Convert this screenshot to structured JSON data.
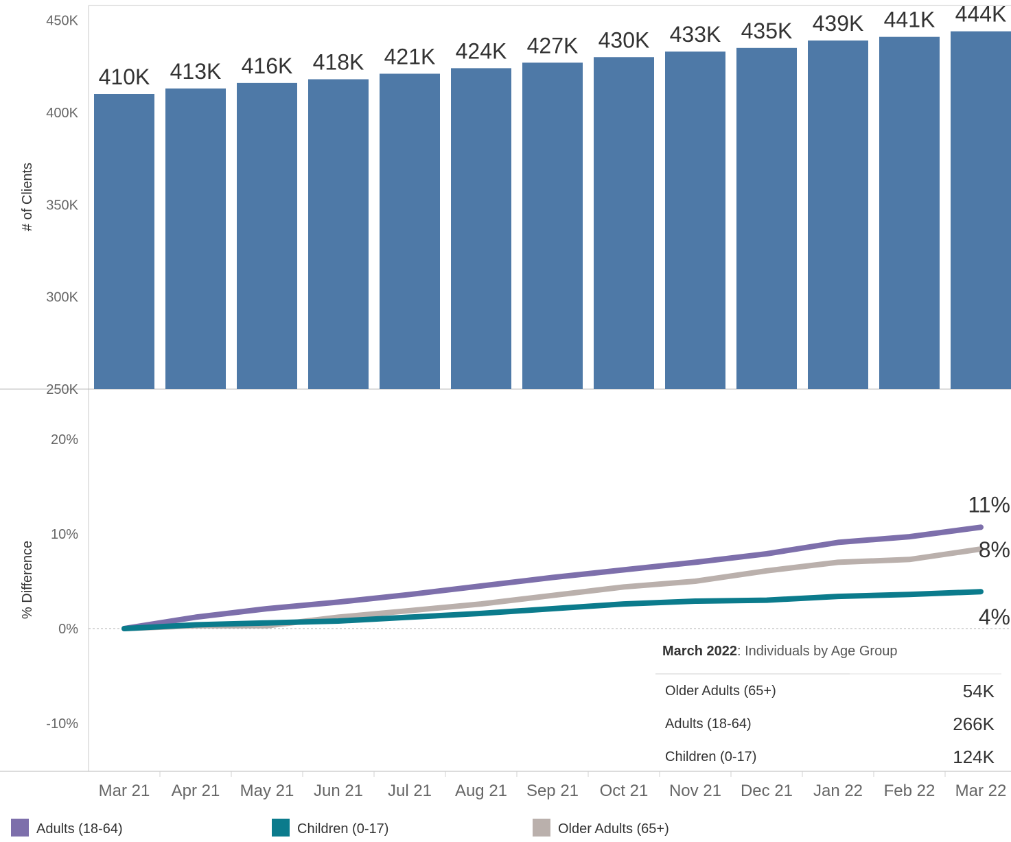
{
  "chart_data": [
    {
      "type": "bar",
      "ylabel": "# of Clients",
      "ylim": [
        250000,
        458000
      ],
      "yticks": [
        250000,
        300000,
        350000,
        400000,
        450000
      ],
      "ytick_labels": [
        "250K",
        "300K",
        "350K",
        "400K",
        "450K"
      ],
      "categories": [
        "Mar 21",
        "Apr 21",
        "May 21",
        "Jun 21",
        "Jul 21",
        "Aug 21",
        "Sep 21",
        "Oct 21",
        "Nov 21",
        "Dec 21",
        "Jan 22",
        "Feb 22",
        "Mar 22"
      ],
      "values": [
        410000,
        413000,
        416000,
        418000,
        421000,
        424000,
        427000,
        430000,
        433000,
        435000,
        439000,
        441000,
        444000
      ],
      "data_labels": [
        "410K",
        "413K",
        "416K",
        "418K",
        "421K",
        "424K",
        "427K",
        "430K",
        "433K",
        "435K",
        "439K",
        "441K",
        "444K"
      ],
      "color": "#4e79a7"
    },
    {
      "type": "line",
      "ylabel": "% Difference",
      "ylim": [
        -15,
        25
      ],
      "yticks": [
        -10,
        0,
        10,
        20
      ],
      "ytick_labels": [
        "-10%",
        "0%",
        "10%",
        "20%"
      ],
      "categories": [
        "Mar 21",
        "Apr 21",
        "May 21",
        "Jun 21",
        "Jul 21",
        "Aug 21",
        "Sep 21",
        "Oct 21",
        "Nov 21",
        "Dec 21",
        "Jan 22",
        "Feb 22",
        "Mar 22"
      ],
      "series": [
        {
          "name": "Adults (18-64)",
          "color": "#7d6fab",
          "end_label": "11%",
          "values": [
            0,
            1.2,
            2.1,
            2.8,
            3.6,
            4.5,
            5.4,
            6.2,
            7.0,
            7.9,
            9.1,
            9.7,
            10.7
          ]
        },
        {
          "name": "Older Adults (65+)",
          "color": "#bab0ac",
          "end_label": "8%",
          "values": [
            0,
            0.3,
            0.3,
            1.2,
            1.9,
            2.6,
            3.5,
            4.4,
            5.0,
            6.1,
            7.0,
            7.3,
            8.4
          ]
        },
        {
          "name": "Children (0-17)",
          "color": "#0b7b8c",
          "end_label": "4%",
          "values": [
            0,
            0.4,
            0.6,
            0.8,
            1.2,
            1.6,
            2.1,
            2.6,
            2.9,
            3.0,
            3.4,
            3.6,
            3.9
          ]
        }
      ]
    }
  ],
  "summary": {
    "title_bold": "March 2022",
    "title_rest": ":  Individuals by Age Group",
    "rows": [
      {
        "label": "Older Adults (65+)",
        "value": "54K"
      },
      {
        "label": "Adults (18-64)",
        "value": "266K"
      },
      {
        "label": "Children (0-17)",
        "value": "124K"
      }
    ]
  },
  "legend": [
    {
      "label": "Adults (18-64)",
      "color": "#7d6fab"
    },
    {
      "label": "Children (0-17)",
      "color": "#0b7b8c"
    },
    {
      "label": "Older Adults (65+)",
      "color": "#bab0ac"
    }
  ]
}
